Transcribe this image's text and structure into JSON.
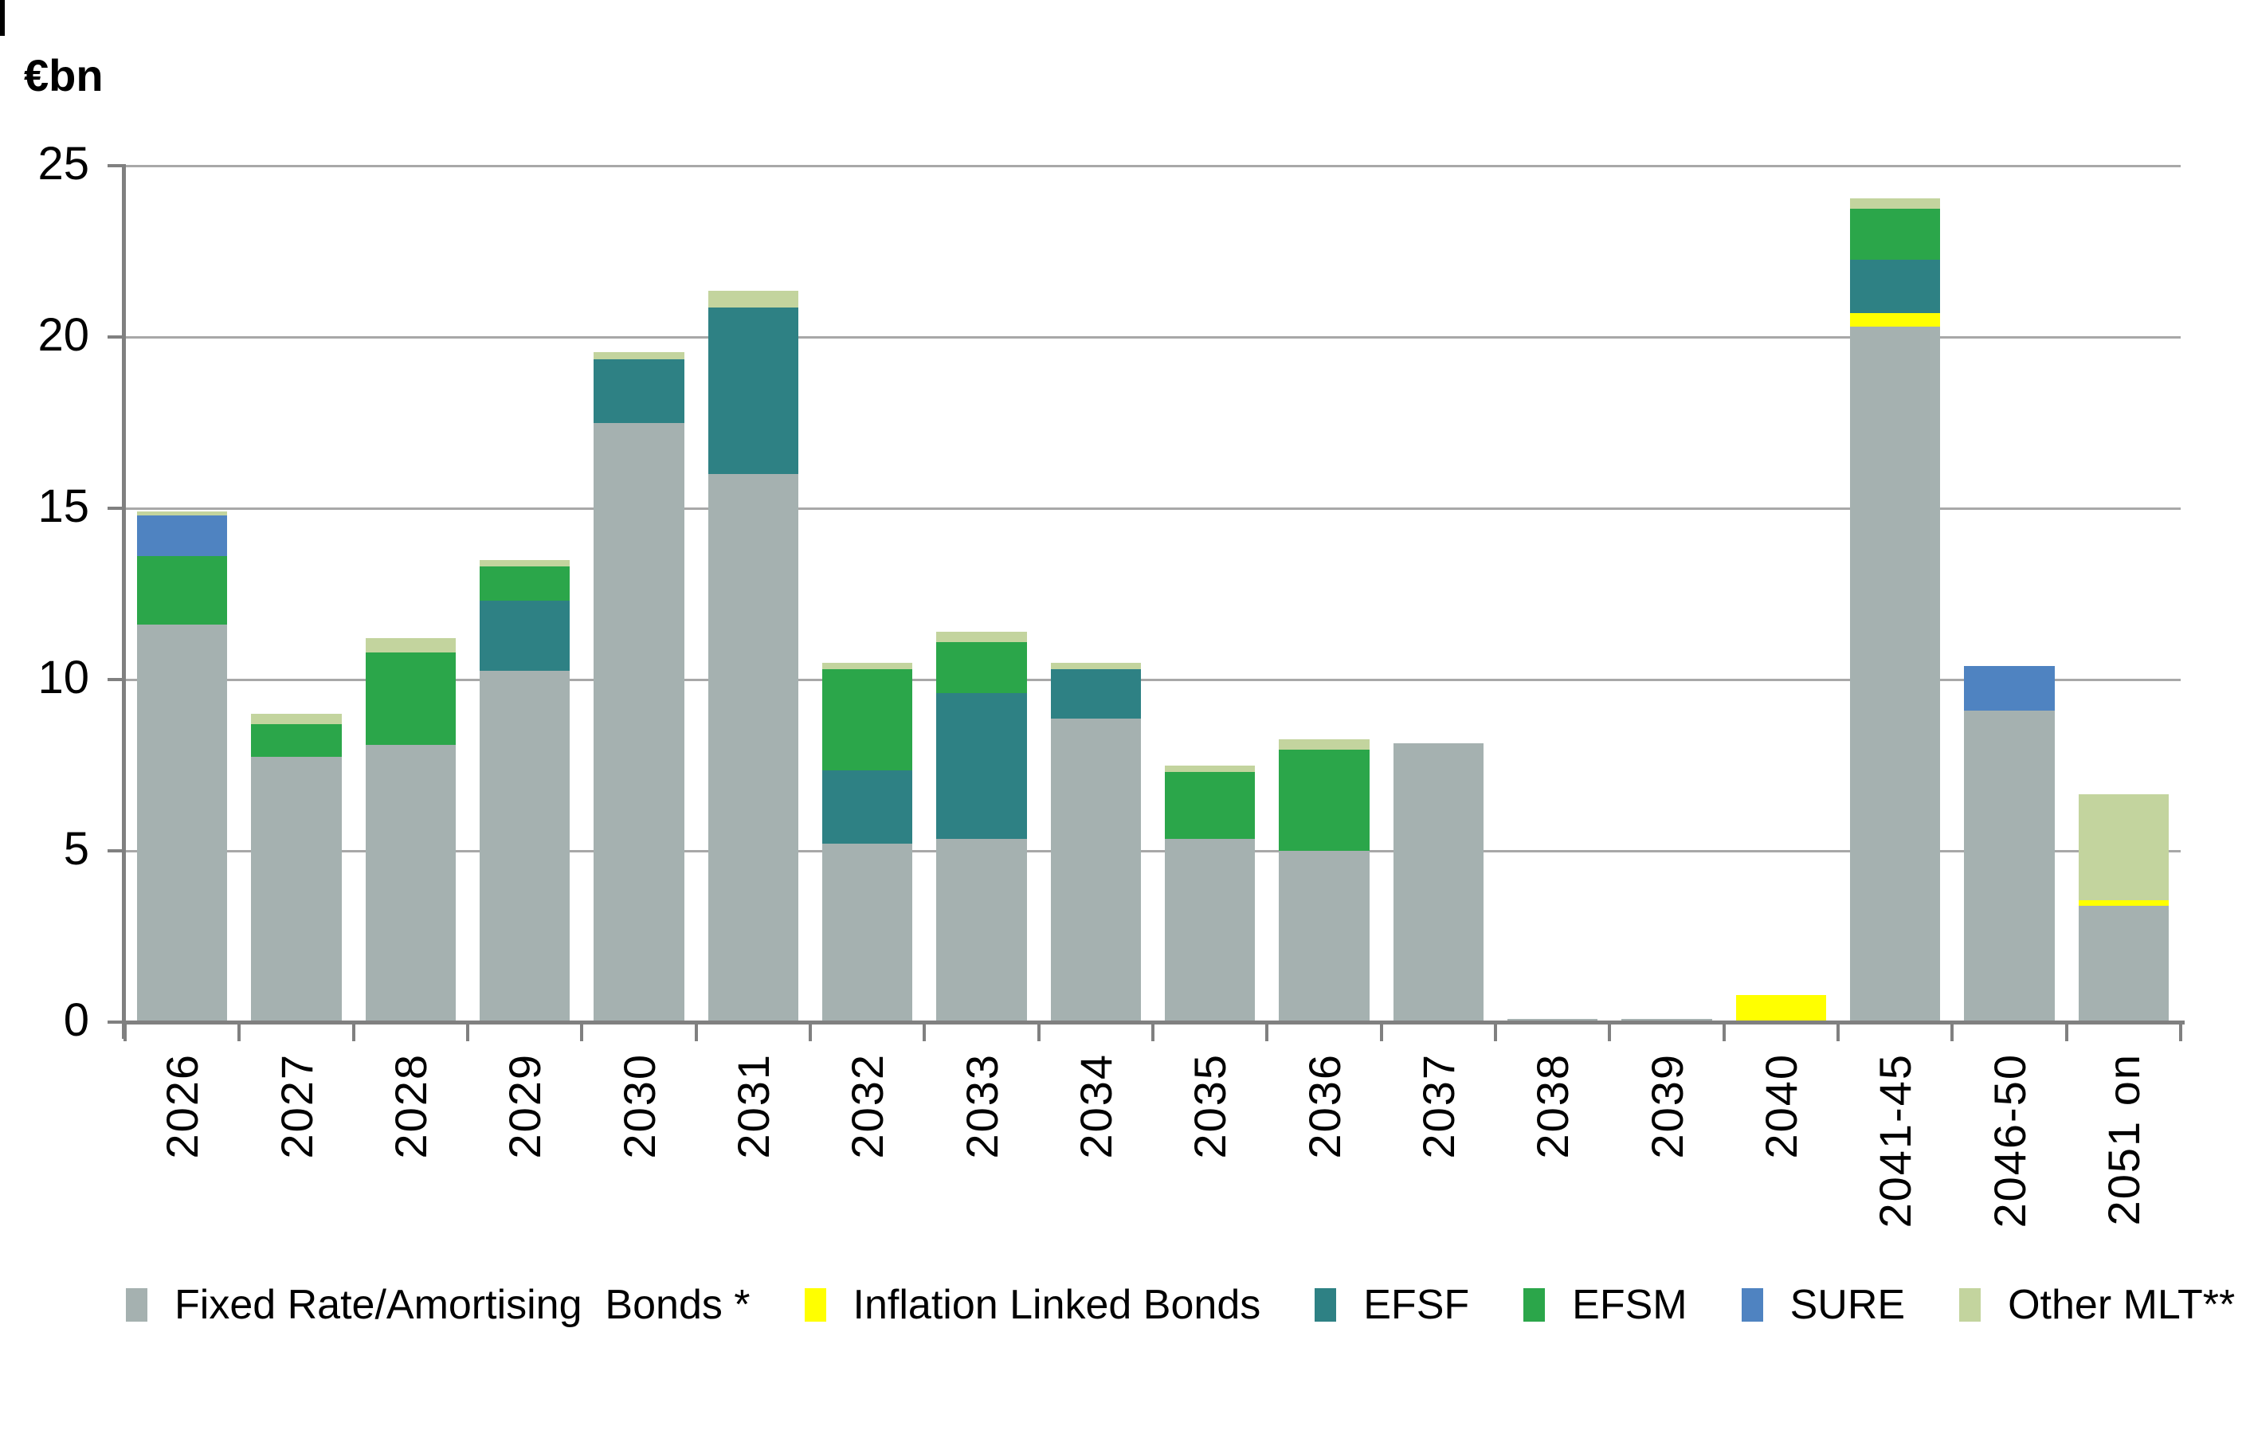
{
  "title": "€bn",
  "colors": {
    "fixed_rate": "#a5b1b0",
    "inflation_linked": "#ffff00",
    "efsf": "#2e8184",
    "efsm": "#2ba64a",
    "sure": "#4f83c1",
    "other_mlt": "#c3d49e",
    "axis": "#808080",
    "gridline": "#a8a8a8",
    "text": "#000000",
    "background": "#ffffff"
  },
  "chart_data": {
    "type": "bar",
    "stacked": true,
    "title": "€bn",
    "xlabel": "",
    "ylabel": "€bn",
    "ylim": [
      0,
      25
    ],
    "yticks": [
      0,
      5,
      10,
      15,
      20,
      25
    ],
    "grid": "horizontal",
    "legend_position": "bottom",
    "categories": [
      "2026",
      "2027",
      "2028",
      "2029",
      "2030",
      "2031",
      "2032",
      "2033",
      "2034",
      "2035",
      "2036",
      "2037",
      "2038",
      "2039",
      "2040",
      "2041-45",
      "2046-50",
      "2051 on"
    ],
    "series": [
      {
        "name": "Fixed Rate/Amortising  Bonds *",
        "color_key": "fixed_rate",
        "values": [
          11.6,
          7.75,
          8.1,
          10.25,
          17.5,
          16.0,
          5.2,
          5.35,
          8.85,
          5.35,
          5.0,
          8.15,
          0.1,
          0.1,
          0,
          20.3,
          9.1,
          3.4
        ]
      },
      {
        "name": "Inflation Linked Bonds",
        "color_key": "inflation_linked",
        "values": [
          0,
          0,
          0,
          0,
          0,
          0,
          0,
          0,
          0,
          0,
          0,
          0,
          0,
          0,
          0.8,
          0.4,
          0,
          0.15
        ]
      },
      {
        "name": "EFSF",
        "color_key": "efsf",
        "values": [
          0,
          0,
          0,
          2.05,
          1.85,
          4.85,
          2.15,
          4.25,
          1.45,
          0,
          0,
          0,
          0,
          0,
          0,
          1.55,
          0,
          0
        ]
      },
      {
        "name": "EFSM",
        "color_key": "efsm",
        "values": [
          2.0,
          0.95,
          2.7,
          1.0,
          0,
          0,
          2.95,
          1.5,
          0,
          1.95,
          2.95,
          0,
          0,
          0,
          0,
          1.5,
          0,
          0
        ]
      },
      {
        "name": "SURE",
        "color_key": "sure",
        "values": [
          1.2,
          0,
          0,
          0,
          0,
          0,
          0,
          0,
          0,
          0,
          0,
          0,
          0,
          0,
          0,
          0,
          1.3,
          0
        ]
      },
      {
        "name": "Other MLT**",
        "color_key": "other_mlt",
        "values": [
          0.1,
          0.3,
          0.4,
          0.2,
          0.2,
          0.5,
          0.2,
          0.3,
          0.2,
          0.2,
          0.3,
          0,
          0,
          0,
          0,
          0.3,
          0,
          3.1
        ]
      }
    ]
  },
  "legend": {
    "items": [
      {
        "label": "Fixed Rate/Amortising  Bonds *",
        "color_key": "fixed_rate"
      },
      {
        "label": "Inflation Linked Bonds",
        "color_key": "inflation_linked"
      },
      {
        "label": "EFSF",
        "color_key": "efsf"
      },
      {
        "label": "EFSM",
        "color_key": "efsm"
      },
      {
        "label": "SURE",
        "color_key": "sure"
      },
      {
        "label": "Other MLT**",
        "color_key": "other_mlt"
      }
    ]
  }
}
